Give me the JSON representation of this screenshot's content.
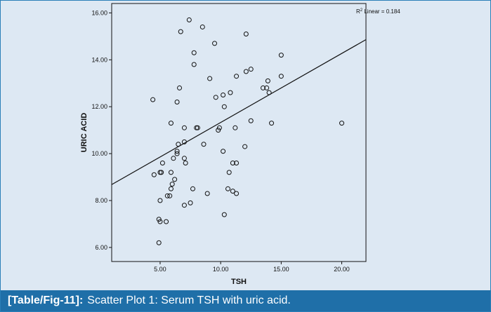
{
  "chart_data": {
    "type": "scatter",
    "title": "",
    "xlabel": "TSH",
    "ylabel": "URIC ACID",
    "xlim": [
      1,
      22
    ],
    "ylim": [
      5.4,
      16.4
    ],
    "x_ticks": [
      5,
      10,
      15,
      20
    ],
    "y_ticks": [
      6,
      8,
      10,
      12,
      14,
      16
    ],
    "x_tick_labels": [
      "5.00",
      "10.00",
      "15.00",
      "20.00"
    ],
    "y_tick_labels": [
      "6.00",
      "8.00",
      "10.00",
      "12.00",
      "14.00",
      "16.00"
    ],
    "grid": false,
    "annotation": {
      "r2_prefix": "R",
      "r2_sup": "2",
      "r2_suffix": " Linear = 0.184"
    },
    "fit_line": {
      "type": "linear",
      "x": [
        1,
        22
      ],
      "y": [
        8.68,
        14.86
      ]
    },
    "points": [
      {
        "x": 7.4,
        "y": 15.7
      },
      {
        "x": 6.7,
        "y": 15.2
      },
      {
        "x": 8.5,
        "y": 15.4
      },
      {
        "x": 12.1,
        "y": 15.1
      },
      {
        "x": 9.5,
        "y": 14.7
      },
      {
        "x": 7.8,
        "y": 14.3
      },
      {
        "x": 15.0,
        "y": 14.2
      },
      {
        "x": 7.8,
        "y": 13.8
      },
      {
        "x": 12.5,
        "y": 13.6
      },
      {
        "x": 12.1,
        "y": 13.5
      },
      {
        "x": 11.3,
        "y": 13.3
      },
      {
        "x": 15.0,
        "y": 13.3
      },
      {
        "x": 9.1,
        "y": 13.2
      },
      {
        "x": 13.9,
        "y": 13.1
      },
      {
        "x": 6.6,
        "y": 12.8
      },
      {
        "x": 13.5,
        "y": 12.8
      },
      {
        "x": 13.8,
        "y": 12.8
      },
      {
        "x": 10.8,
        "y": 12.6
      },
      {
        "x": 14.0,
        "y": 12.6
      },
      {
        "x": 9.6,
        "y": 12.4
      },
      {
        "x": 10.2,
        "y": 12.5
      },
      {
        "x": 4.4,
        "y": 12.3
      },
      {
        "x": 6.4,
        "y": 12.2
      },
      {
        "x": 10.3,
        "y": 12.0
      },
      {
        "x": 12.5,
        "y": 11.4
      },
      {
        "x": 5.9,
        "y": 11.3
      },
      {
        "x": 14.2,
        "y": 11.3
      },
      {
        "x": 20.0,
        "y": 11.3
      },
      {
        "x": 7.0,
        "y": 11.1
      },
      {
        "x": 8.0,
        "y": 11.1
      },
      {
        "x": 8.1,
        "y": 11.1
      },
      {
        "x": 9.9,
        "y": 11.1
      },
      {
        "x": 11.2,
        "y": 11.1
      },
      {
        "x": 9.8,
        "y": 11.0
      },
      {
        "x": 6.5,
        "y": 10.4
      },
      {
        "x": 8.6,
        "y": 10.4
      },
      {
        "x": 7.0,
        "y": 10.5
      },
      {
        "x": 12.0,
        "y": 10.3
      },
      {
        "x": 6.4,
        "y": 10.1
      },
      {
        "x": 10.2,
        "y": 10.1
      },
      {
        "x": 6.4,
        "y": 10.0
      },
      {
        "x": 6.1,
        "y": 9.8
      },
      {
        "x": 7.0,
        "y": 9.8
      },
      {
        "x": 5.2,
        "y": 9.6
      },
      {
        "x": 7.1,
        "y": 9.6
      },
      {
        "x": 11.0,
        "y": 9.6
      },
      {
        "x": 11.3,
        "y": 9.6
      },
      {
        "x": 5.0,
        "y": 9.2
      },
      {
        "x": 5.1,
        "y": 9.2
      },
      {
        "x": 5.9,
        "y": 9.2
      },
      {
        "x": 10.7,
        "y": 9.2
      },
      {
        "x": 4.5,
        "y": 9.1
      },
      {
        "x": 6.2,
        "y": 8.9
      },
      {
        "x": 6.0,
        "y": 8.7
      },
      {
        "x": 5.9,
        "y": 8.5
      },
      {
        "x": 7.7,
        "y": 8.5
      },
      {
        "x": 10.6,
        "y": 8.5
      },
      {
        "x": 11.0,
        "y": 8.4
      },
      {
        "x": 8.9,
        "y": 8.3
      },
      {
        "x": 11.3,
        "y": 8.3
      },
      {
        "x": 5.6,
        "y": 8.2
      },
      {
        "x": 5.8,
        "y": 8.2
      },
      {
        "x": 5.0,
        "y": 8.0
      },
      {
        "x": 7.5,
        "y": 7.9
      },
      {
        "x": 7.0,
        "y": 7.8
      },
      {
        "x": 10.3,
        "y": 7.4
      },
      {
        "x": 4.9,
        "y": 7.2
      },
      {
        "x": 5.0,
        "y": 7.1
      },
      {
        "x": 5.5,
        "y": 7.1
      },
      {
        "x": 4.9,
        "y": 6.2
      }
    ]
  },
  "caption": {
    "tag": "[Table/Fig-11]:",
    "text": "Scatter Plot 1: Serum TSH with uric acid."
  },
  "colors": {
    "panel_background": "#dde8f3",
    "caption_background": "#1f6fa8",
    "caption_text": "#ffffff",
    "marker_stroke": "#111111",
    "line_color": "#111111"
  }
}
